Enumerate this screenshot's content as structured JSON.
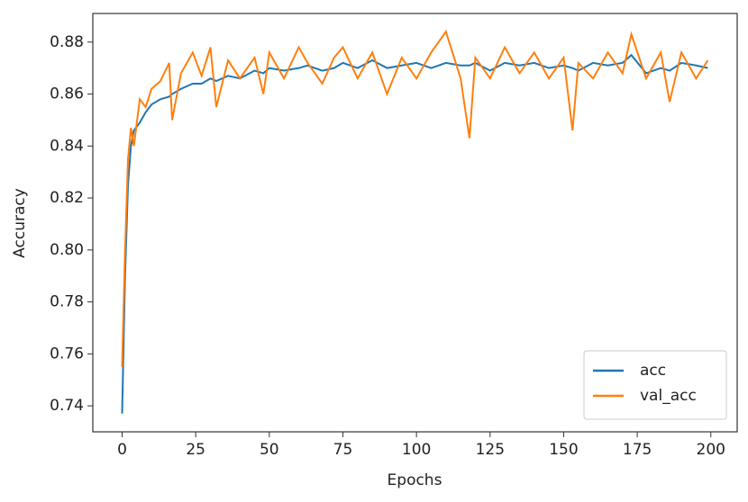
{
  "chart_data": {
    "type": "line",
    "x_label": "Epochs",
    "y_label": "Accuracy",
    "x": [
      0,
      1,
      2,
      3,
      4,
      6,
      8,
      10,
      13,
      16,
      17,
      20,
      24,
      27,
      30,
      32,
      36,
      40,
      45,
      48,
      50,
      55,
      60,
      63,
      68,
      72,
      75,
      80,
      85,
      90,
      95,
      100,
      105,
      110,
      115,
      118,
      120,
      125,
      130,
      135,
      140,
      145,
      150,
      153,
      155,
      160,
      165,
      170,
      173,
      178,
      183,
      186,
      190,
      195,
      199
    ],
    "series": [
      {
        "name": "acc",
        "color": "#1f77b4",
        "values": [
          0.737,
          0.79,
          0.825,
          0.84,
          0.846,
          0.849,
          0.853,
          0.856,
          0.858,
          0.859,
          0.86,
          0.862,
          0.864,
          0.864,
          0.866,
          0.865,
          0.867,
          0.866,
          0.869,
          0.868,
          0.87,
          0.869,
          0.87,
          0.871,
          0.869,
          0.87,
          0.872,
          0.87,
          0.873,
          0.87,
          0.871,
          0.872,
          0.87,
          0.872,
          0.871,
          0.871,
          0.872,
          0.869,
          0.872,
          0.871,
          0.872,
          0.87,
          0.871,
          0.87,
          0.869,
          0.872,
          0.871,
          0.872,
          0.875,
          0.868,
          0.87,
          0.869,
          0.872,
          0.871,
          0.87
        ]
      },
      {
        "name": "val_acc",
        "color": "#ff7f0e",
        "values": [
          0.755,
          0.8,
          0.835,
          0.847,
          0.84,
          0.858,
          0.855,
          0.862,
          0.865,
          0.872,
          0.85,
          0.868,
          0.876,
          0.867,
          0.878,
          0.855,
          0.873,
          0.866,
          0.874,
          0.86,
          0.876,
          0.866,
          0.878,
          0.872,
          0.864,
          0.874,
          0.878,
          0.866,
          0.876,
          0.86,
          0.874,
          0.866,
          0.876,
          0.884,
          0.866,
          0.843,
          0.874,
          0.866,
          0.878,
          0.868,
          0.876,
          0.866,
          0.874,
          0.846,
          0.872,
          0.866,
          0.876,
          0.868,
          0.883,
          0.866,
          0.876,
          0.857,
          0.876,
          0.866,
          0.873
        ]
      }
    ],
    "xlim": [
      -9.95,
      208.95
    ],
    "xticks": [
      0,
      25,
      50,
      75,
      100,
      125,
      150,
      175,
      200
    ],
    "ylim": [
      0.73,
      0.891
    ],
    "yticks": [
      0.74,
      0.76,
      0.78,
      {
        "value": 0.8,
        "label": "0.80"
      },
      0.82,
      0.84,
      0.86,
      0.88
    ],
    "legend": "lower right"
  }
}
